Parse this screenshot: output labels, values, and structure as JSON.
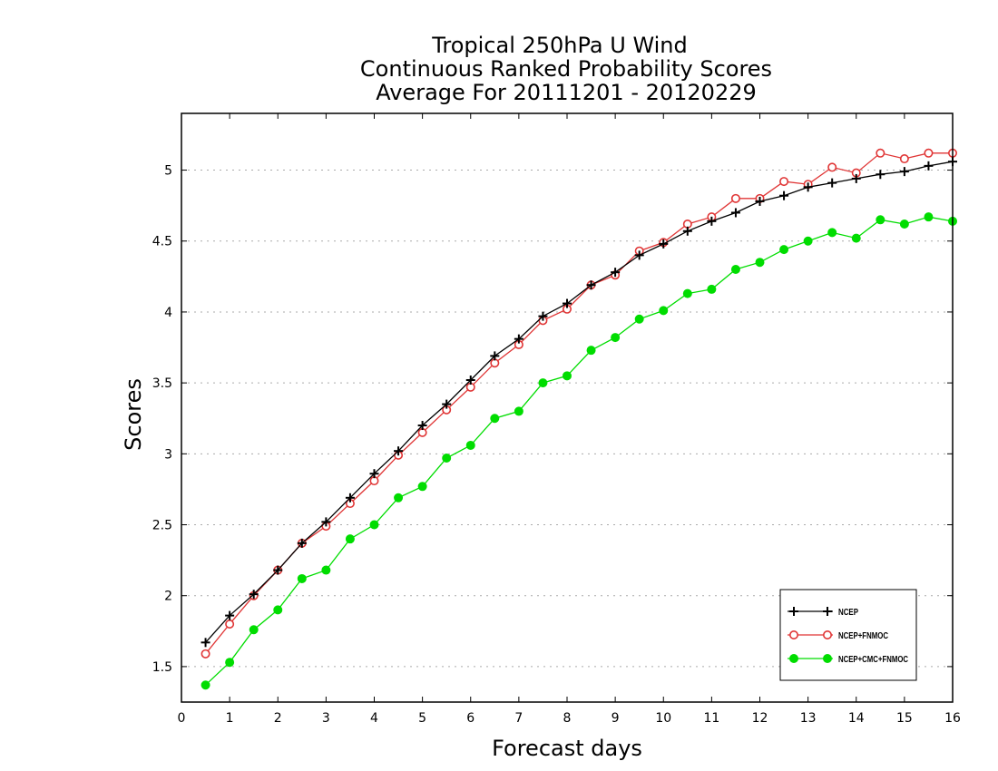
{
  "chart_data": {
    "type": "line",
    "title": [
      "Tropical 250hPa U Wind",
      "Continuous Ranked Probability Scores",
      "Average For 20111201 - 20120229"
    ],
    "xlabel": "Forecast days",
    "ylabel": "Scores",
    "xlim": [
      0,
      16
    ],
    "ylim": [
      1.25,
      5.4
    ],
    "x_ticks": [
      0,
      1,
      2,
      3,
      4,
      5,
      6,
      7,
      8,
      9,
      10,
      11,
      12,
      13,
      14,
      15,
      16
    ],
    "y_ticks": [
      1.5,
      2,
      2.5,
      3,
      3.5,
      4,
      4.5,
      5
    ],
    "y_tick_labels": [
      "1.5",
      "2",
      "2.5",
      "3",
      "3.5",
      "4",
      "4.5",
      "5"
    ],
    "grid": "horizontal dotted",
    "legend_position": "bottom-right",
    "x": [
      0.5,
      1,
      1.5,
      2,
      2.5,
      3,
      3.5,
      4,
      4.5,
      5,
      5.5,
      6,
      6.5,
      7,
      7.5,
      8,
      8.5,
      9,
      9.5,
      10,
      10.5,
      11,
      11.5,
      12,
      12.5,
      13,
      13.5,
      14,
      14.5,
      15,
      15.5,
      16
    ],
    "series": [
      {
        "name": "NCEP",
        "color": "#000000",
        "marker": "plus",
        "values": [
          1.67,
          1.86,
          2.01,
          2.18,
          2.37,
          2.52,
          2.69,
          2.86,
          3.02,
          3.2,
          3.35,
          3.52,
          3.69,
          3.81,
          3.97,
          4.06,
          4.19,
          4.28,
          4.4,
          4.48,
          4.57,
          4.64,
          4.7,
          4.78,
          4.82,
          4.88,
          4.91,
          4.94,
          4.97,
          4.99,
          5.03,
          5.06
        ]
      },
      {
        "name": "NCEP+FNMOC",
        "color": "#e03535",
        "marker": "open-circle",
        "values": [
          1.59,
          1.8,
          2.0,
          2.18,
          2.37,
          2.49,
          2.65,
          2.81,
          2.99,
          3.15,
          3.31,
          3.47,
          3.64,
          3.77,
          3.94,
          4.02,
          4.19,
          4.26,
          4.43,
          4.49,
          4.62,
          4.67,
          4.8,
          4.8,
          4.92,
          4.9,
          5.02,
          4.98,
          5.12,
          5.08,
          5.12,
          5.12
        ]
      },
      {
        "name": "NCEP+CMC+FNMOC",
        "color": "#00dd00",
        "marker": "filled-circle",
        "values": [
          1.37,
          1.53,
          1.76,
          1.9,
          2.12,
          2.18,
          2.4,
          2.5,
          2.69,
          2.77,
          2.97,
          3.06,
          3.25,
          3.3,
          3.5,
          3.55,
          3.73,
          3.82,
          3.95,
          4.01,
          4.13,
          4.16,
          4.3,
          4.35,
          4.44,
          4.5,
          4.56,
          4.52,
          4.65,
          4.62,
          4.67,
          4.64
        ]
      }
    ]
  }
}
